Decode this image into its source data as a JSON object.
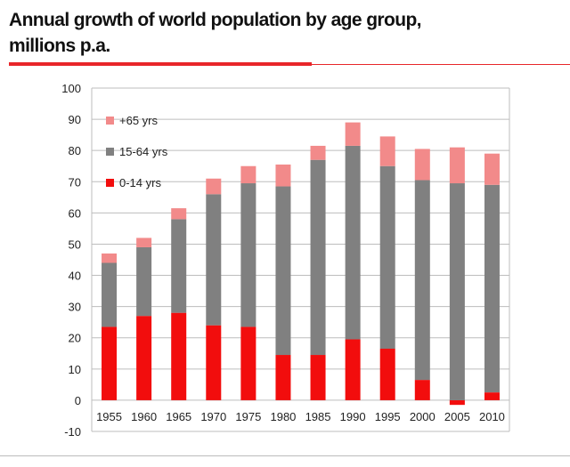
{
  "header": {
    "title_line1": "Annual growth of world population by age group,",
    "title_line2": "millions p.a."
  },
  "colors": {
    "age_0_14": "#f20d0d",
    "age_15_64": "#808080",
    "age_65_plus": "#f28a8a",
    "accent_rule": "#e8262a"
  },
  "chart_data": {
    "type": "bar",
    "stacked": true,
    "categories": [
      "1955",
      "1960",
      "1965",
      "1970",
      "1975",
      "1980",
      "1985",
      "1990",
      "1995",
      "2000",
      "2005",
      "2010"
    ],
    "series": [
      {
        "name": "0-14 yrs",
        "values": [
          23.5,
          27,
          28,
          24,
          23.5,
          14.5,
          14.5,
          19.5,
          16.5,
          6.5,
          -1.5,
          2.5
        ]
      },
      {
        "name": "15-64 yrs",
        "values": [
          20.5,
          22,
          30,
          42,
          46,
          54,
          62.5,
          62,
          58.5,
          64,
          69.5,
          66.5
        ]
      },
      {
        "name": "+65 yrs",
        "values": [
          3,
          3,
          3.5,
          5,
          5.5,
          7,
          4.5,
          7.5,
          9.5,
          10,
          11.5,
          10
        ]
      }
    ],
    "ylim": [
      -10,
      100
    ],
    "yticks": [
      "-10",
      "0",
      "10",
      "20",
      "30",
      "40",
      "50",
      "60",
      "70",
      "80",
      "90",
      "100"
    ],
    "grid": true,
    "legend": {
      "placement": "top-left",
      "order": [
        "+65 yrs",
        "15-64 yrs",
        "0-14 yrs"
      ]
    }
  }
}
